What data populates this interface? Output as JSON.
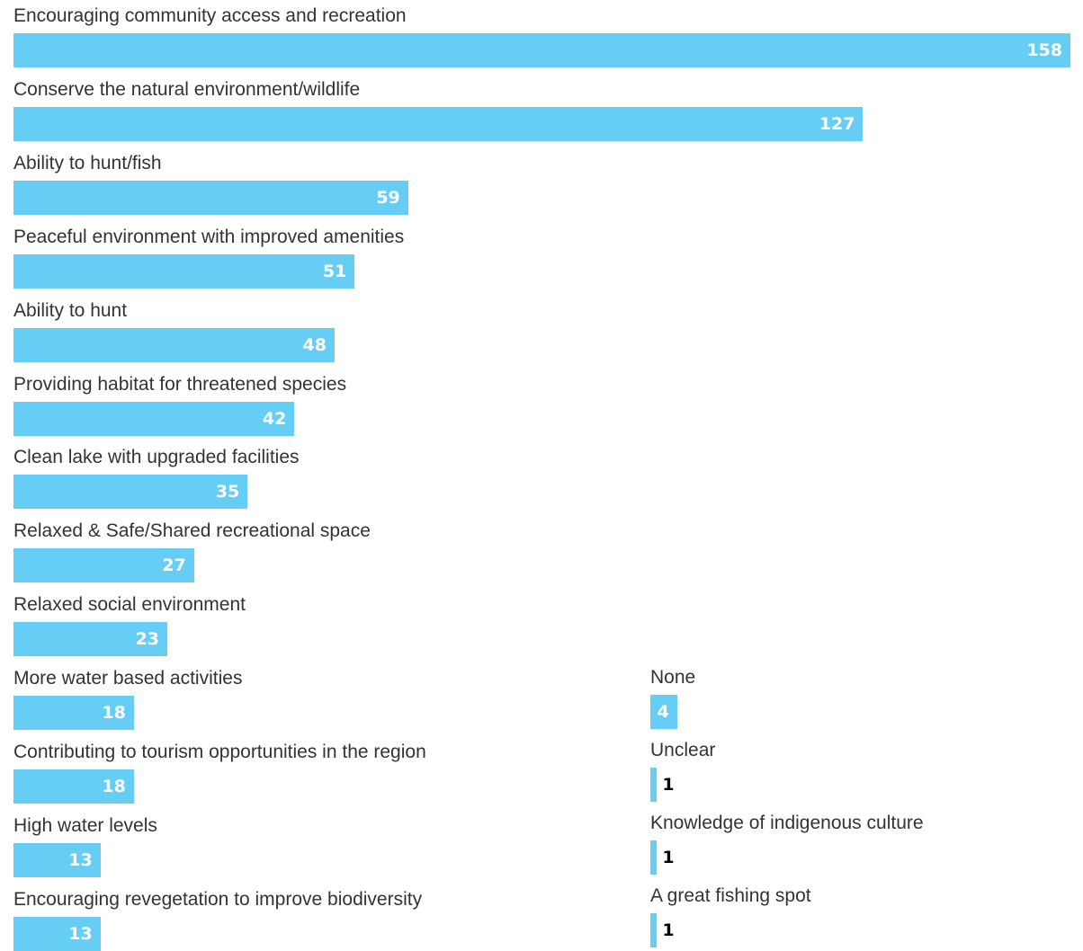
{
  "chart_data": {
    "type": "bar",
    "orientation": "horizontal",
    "bar_color": "#66cdf5",
    "inside_label_color": "#ffffff",
    "outside_label_color": "#000000",
    "xlim": [
      0,
      158
    ],
    "grid": false,
    "groups": [
      {
        "categories": [
          "Encouraging community access and recreation",
          "Conserve the natural environment/wildlife",
          "Ability to hunt/fish",
          "Peaceful environment with improved amenities",
          "Ability to hunt",
          "Providing habitat for threatened species",
          "Clean lake with upgraded facilities",
          "Relaxed & Safe/Shared recreational space",
          "Relaxed social environment",
          "More water based activities",
          "Contributing to tourism opportunities in the region",
          "High water levels",
          "Encouraging revegetation to improve biodiversity"
        ],
        "values": [
          158,
          127,
          59,
          51,
          48,
          42,
          35,
          27,
          23,
          18,
          18,
          13,
          13
        ]
      },
      {
        "categories": [
          "None",
          "Unclear",
          "Knowledge of indigenous culture",
          "A great fishing spot"
        ],
        "values": [
          4,
          1,
          1,
          1
        ]
      }
    ]
  }
}
